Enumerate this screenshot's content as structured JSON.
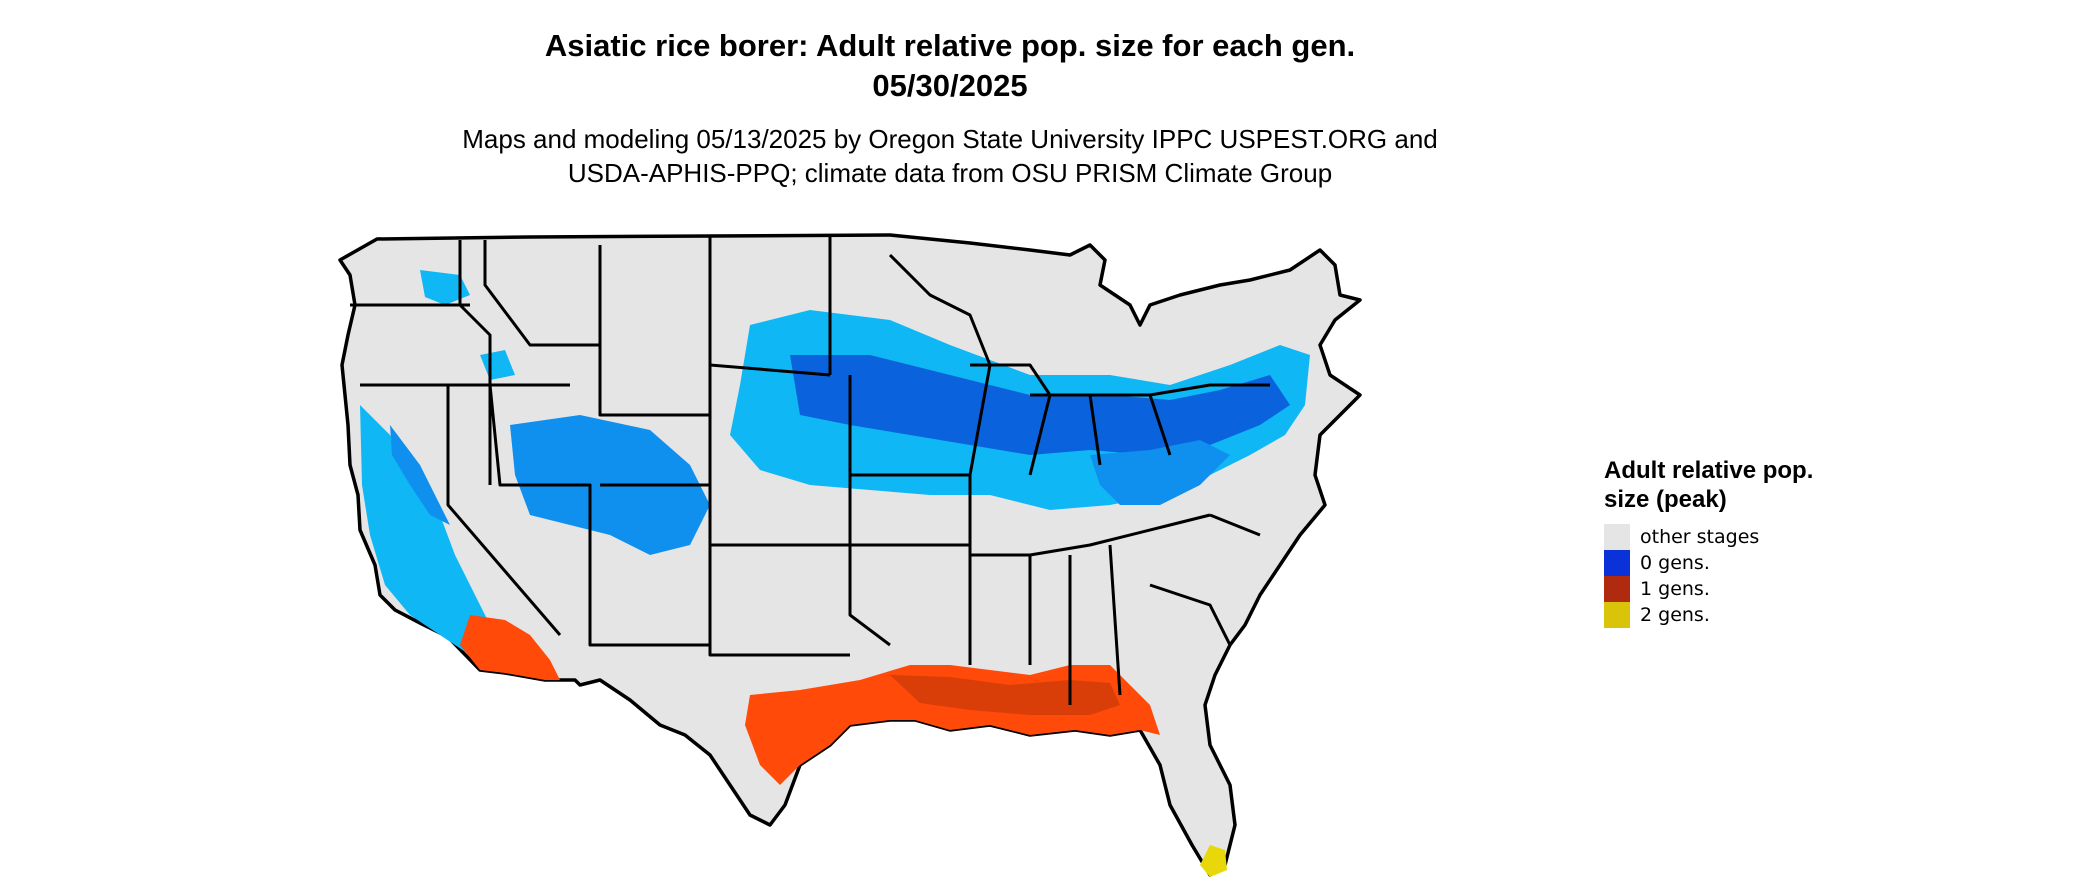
{
  "title_line1": "Asiatic rice borer: Adult relative pop. size for each gen.",
  "title_line2": "05/30/2025",
  "subtitle_line1": "Maps and modeling 05/13/2025 by Oregon State University IPPC USPEST.ORG and",
  "subtitle_line2": "USDA-APHIS-PPQ; climate data from OSU PRISM Climate Group",
  "legend": {
    "title": "Adult relative pop. size (peak)",
    "items": [
      {
        "label": "other stages",
        "color": "#e5e5e5"
      },
      {
        "label": "0 gens.",
        "color": "#0a32d8"
      },
      {
        "label": "1 gens.",
        "color": "#b02a10"
      },
      {
        "label": "2 gens.",
        "color": "#d9c40a"
      }
    ]
  },
  "map_colors": {
    "land": "#e5e5e5",
    "border": "#000000",
    "light_blue": "#0fb7f5",
    "mid_blue": "#1090ee",
    "dark_blue": "#0a63dd",
    "orange": "#ff4a0a",
    "dark_orange": "#d93d08",
    "yellow": "#e8d80a"
  }
}
